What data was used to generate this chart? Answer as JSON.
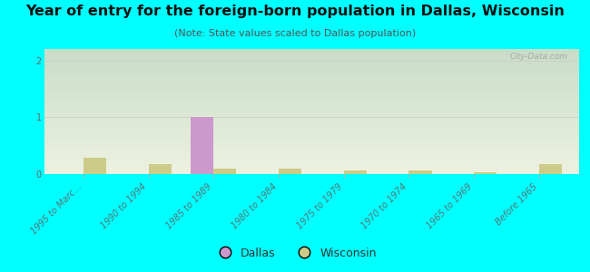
{
  "title": "Year of entry for the foreign-born population in Dallas, Wisconsin",
  "subtitle": "(Note: State values scaled to Dallas population)",
  "categories": [
    "1995 to Marc...",
    "1990 to 1994",
    "1985 to 1989",
    "1980 to 1984",
    "1975 to 1979",
    "1970 to 1974",
    "1965 to 1969",
    "Before 1965"
  ],
  "dallas_values": [
    0,
    0,
    1.0,
    0,
    0,
    0,
    0,
    0
  ],
  "wisconsin_values": [
    0.28,
    0.18,
    0.1,
    0.09,
    0.07,
    0.06,
    0.03,
    0.18
  ],
  "dallas_color": "#cc99cc",
  "wisconsin_color": "#cccc88",
  "ylim": [
    0,
    2.2
  ],
  "yticks": [
    0,
    1,
    2
  ],
  "outer_background": "#00ffff",
  "plot_bg_top": "#c8ddc8",
  "plot_bg_bottom": "#eef2e0",
  "watermark": "City-Data.com",
  "bar_width": 0.35,
  "title_fontsize": 11.5,
  "subtitle_fontsize": 8,
  "tick_fontsize": 7,
  "legend_fontsize": 9
}
